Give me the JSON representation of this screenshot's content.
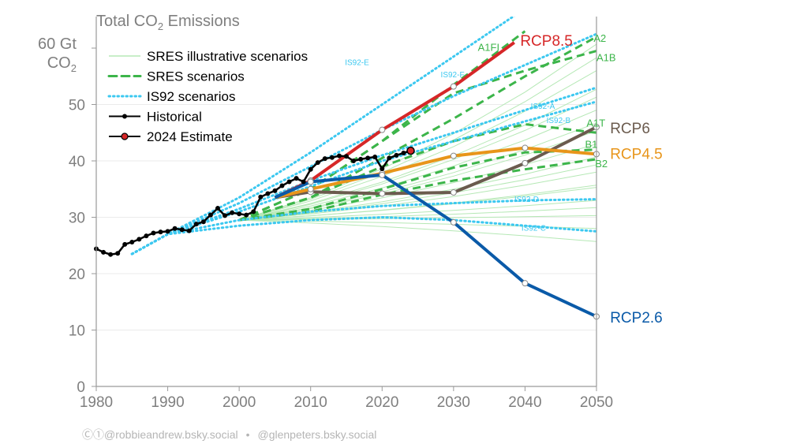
{
  "title_main": "Total CO",
  "title_sub": "2",
  "title_rest": " Emissions",
  "ylabel_line1": "60 Gt",
  "ylabel_line2_main": "CO",
  "ylabel_line2_sub": "2",
  "credits": {
    "left": "Ⓒ①@robbieandrew.bsky.social",
    "separator": "•",
    "right": "@glenpeters.bsky.social"
  },
  "chart_data": {
    "type": "line",
    "x_range": [
      1980,
      2050
    ],
    "ylim": [
      0,
      60
    ],
    "x_ticks": [
      "1980",
      "1990",
      "2000",
      "2010",
      "2020",
      "2030",
      "2040",
      "2050"
    ],
    "y_ticks": [
      "0",
      "10",
      "20",
      "30",
      "40",
      "50"
    ],
    "legend": {
      "placement": "top-left",
      "entries": [
        "SRES illustrative scenarios",
        "SRES scenarios",
        "IS92 scenarios",
        "Historical",
        "2024 Estimate"
      ]
    },
    "colors": {
      "historical": "#000000",
      "estimate": "#d62728",
      "sres_illustrative": "#b5e8b5",
      "sres": "#3cb54a",
      "is92": "#3cc8f0",
      "RCP8.5": "#d62728",
      "RCP6": "#6b5b4e",
      "RCP4.5": "#e8951a",
      "RCP2.6": "#0a5aa8"
    },
    "historical": {
      "x": [
        1980,
        1981,
        1982,
        1983,
        1984,
        1985,
        1986,
        1987,
        1988,
        1989,
        1990,
        1991,
        1992,
        1993,
        1994,
        1995,
        1996,
        1997,
        1998,
        1999,
        2000,
        2001,
        2002,
        2003,
        2004,
        2005,
        2006,
        2007,
        2008,
        2009,
        2010,
        2011,
        2012,
        2013,
        2014,
        2015,
        2016,
        2017,
        2018,
        2019,
        2020,
        2021,
        2022,
        2023
      ],
      "y": [
        24.4,
        23.8,
        23.4,
        23.6,
        25.2,
        25.6,
        26.1,
        26.7,
        27.2,
        27.4,
        27.5,
        28.0,
        27.8,
        27.6,
        28.8,
        29.2,
        30.4,
        31.6,
        30.3,
        30.8,
        30.6,
        30.4,
        31.0,
        33.6,
        34.2,
        34.7,
        35.6,
        36.3,
        36.9,
        36.3,
        38.5,
        39.7,
        40.4,
        40.6,
        40.9,
        40.8,
        40.0,
        40.3,
        40.5,
        40.7,
        38.6,
        40.5,
        41.0,
        41.4
      ]
    },
    "estimate_2024": {
      "x": 2024,
      "y": 41.8
    },
    "rcp": [
      {
        "name": "RCP8.5",
        "x": [
          2005,
          2010,
          2020,
          2030,
          2038.5
        ],
        "y": [
          33.5,
          36.5,
          45.5,
          53.2,
          61.0
        ],
        "markers": [
          2010,
          2020,
          2030
        ],
        "label_placement": "top"
      },
      {
        "name": "RCP6",
        "x": [
          2005,
          2010,
          2020,
          2030,
          2040,
          2050
        ],
        "y": [
          33.5,
          34.5,
          34.2,
          34.4,
          39.6,
          46.0
        ],
        "markers": [
          2010,
          2020,
          2030,
          2040,
          2050
        ],
        "label_placement": "right"
      },
      {
        "name": "RCP4.5",
        "x": [
          2005,
          2010,
          2020,
          2030,
          2040,
          2050
        ],
        "y": [
          33.5,
          35.0,
          37.8,
          40.9,
          42.3,
          41.2
        ],
        "markers": [
          2010,
          2020,
          2030,
          2040,
          2050
        ],
        "label_placement": "right"
      },
      {
        "name": "RCP2.6",
        "x": [
          2005,
          2010,
          2020,
          2030,
          2040,
          2050
        ],
        "y": [
          33.5,
          36.3,
          37.5,
          29.1,
          18.3,
          12.4
        ],
        "markers": [
          2010,
          2020,
          2030,
          2040,
          2050
        ],
        "label_placement": "right"
      }
    ],
    "sres_scenarios": [
      {
        "name": "A1FI",
        "x": [
          2000,
          2010,
          2020,
          2030,
          2040
        ],
        "y": [
          29.5,
          35.0,
          43.5,
          53.5,
          63.0
        ]
      },
      {
        "name": "A2",
        "x": [
          2000,
          2010,
          2020,
          2030,
          2040,
          2050
        ],
        "y": [
          29.5,
          33.5,
          40.5,
          47.5,
          55.0,
          62.0
        ]
      },
      {
        "name": "A1B",
        "x": [
          2000,
          2010,
          2020,
          2030,
          2040,
          2050
        ],
        "y": [
          29.5,
          35.0,
          43.5,
          52.0,
          56.0,
          59.5
        ]
      },
      {
        "name": "A1T",
        "x": [
          2000,
          2010,
          2020,
          2030,
          2040,
          2050
        ],
        "y": [
          29.5,
          33.5,
          39.0,
          43.5,
          46.5,
          45.0
        ]
      },
      {
        "name": "B1",
        "x": [
          2000,
          2010,
          2020,
          2030,
          2040,
          2050
        ],
        "y": [
          29.5,
          31.5,
          35.0,
          38.8,
          41.5,
          42.0
        ]
      },
      {
        "name": "B2",
        "x": [
          2000,
          2010,
          2020,
          2030,
          2040,
          2050
        ],
        "y": [
          29.5,
          31.0,
          34.0,
          36.5,
          38.5,
          40.3
        ]
      }
    ],
    "is92_scenarios": [
      {
        "name": "IS92-E",
        "x": [
          1985,
          1990,
          2000,
          2010,
          2020,
          2030,
          2040
        ],
        "y": [
          23.5,
          27.0,
          33.5,
          41.5,
          50.0,
          58.5,
          67.0
        ]
      },
      {
        "name": "IS92-F",
        "x": [
          1985,
          1990,
          2000,
          2010,
          2020,
          2030,
          2040,
          2050
        ],
        "y": [
          23.5,
          27.0,
          32.5,
          39.0,
          45.5,
          51.5,
          57.0,
          62.5
        ]
      },
      {
        "name": "IS92-A",
        "x": [
          1985,
          1990,
          2000,
          2010,
          2020,
          2030,
          2040,
          2050
        ],
        "y": [
          23.5,
          27.0,
          31.5,
          36.5,
          41.0,
          45.0,
          49.0,
          53.0
        ]
      },
      {
        "name": "IS92-B",
        "x": [
          1985,
          1990,
          2000,
          2010,
          2020,
          2030,
          2040,
          2050
        ],
        "y": [
          23.5,
          27.0,
          31.0,
          35.5,
          40.0,
          43.5,
          47.0,
          50.5
        ]
      },
      {
        "name": "IS92-D",
        "x": [
          1985,
          1990,
          2000,
          2010,
          2020,
          2030,
          2040,
          2050
        ],
        "y": [
          23.5,
          27.0,
          29.5,
          31.0,
          32.0,
          32.5,
          33.0,
          33.2
        ]
      },
      {
        "name": "IS92-C",
        "x": [
          1985,
          1990,
          2000,
          2010,
          2020,
          2030,
          2040,
          2050
        ],
        "y": [
          23.5,
          27.0,
          28.5,
          29.5,
          30.0,
          29.5,
          28.5,
          27.5
        ]
      }
    ],
    "sres_illustrative_end_values_2050": [
      26,
      28,
      30,
      32,
      33,
      35,
      36,
      38,
      39,
      41,
      43,
      45,
      47,
      49,
      51,
      53,
      56,
      58,
      61
    ]
  }
}
